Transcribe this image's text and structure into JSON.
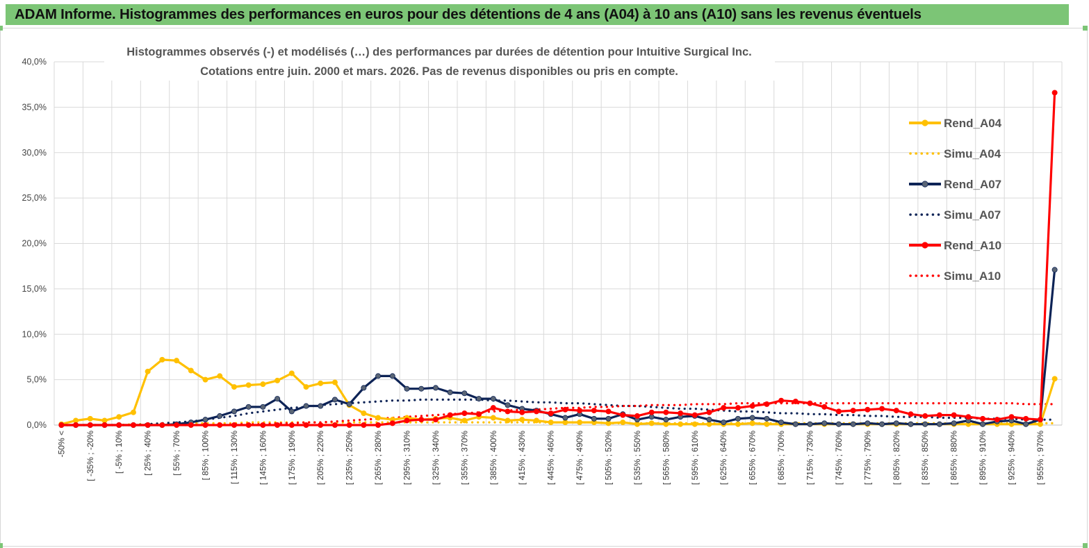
{
  "header": {
    "title": "ADAM Informe. Histogrammes des performances en euros pour des détentions de 4 ans (A04) à 10 ans (A10) sans les revenus éventuels"
  },
  "colors": {
    "banner": "#7cc576",
    "a04": "#ffc000",
    "a07": "#0d2356",
    "a10": "#ff0000",
    "marker_a07": "#5a6575"
  },
  "chart_data": {
    "type": "line",
    "title_line1": "Histogrammes observés (-) et modélisés (…) des performances par durées de détention pour Intuitive Surgical Inc.",
    "title_line2": "Cotations entre juin. 2000 et mars. 2026.  Pas de revenus disponibles ou pris en compte.",
    "xlabel": "",
    "ylabel": "",
    "ylim": [
      0,
      40
    ],
    "yticks": [
      "0,0%",
      "5,0%",
      "10,0%",
      "15,0%",
      "20,0%",
      "25,0%",
      "30,0%",
      "35,0%",
      "40,0%"
    ],
    "x_tick_labels": [
      "-50% <",
      "[ -35% ; -20%",
      "[ -5% ; 10%",
      "[ 25% ; 40%",
      "[ 55% ; 70%",
      "[ 85% ; 100%",
      "[ 115% ; 130%",
      "[ 145% ; 160%",
      "[ 175% ; 190%",
      "[ 205% ; 220%",
      "[ 235% ; 250%",
      "[ 265% ; 280%",
      "[ 295% ; 310%",
      "[ 325% ; 340%",
      "[ 355% ; 370%",
      "[ 385% ; 400%",
      "[ 415% ; 430%",
      "[ 445% ; 460%",
      "[ 475% ; 490%",
      "[ 505% ; 520%",
      "[ 535% ; 550%",
      "[ 565% ; 580%",
      "[ 595% ; 610%",
      "[ 625% ; 640%",
      "[ 655% ; 670%",
      "[ 685% ; 700%",
      "[ 715% ; 730%",
      "[ 745% ; 760%",
      "[ 775% ; 790%",
      "[ 805% ; 820%",
      "[ 835% ; 850%",
      "[ 865% ; 880%",
      "[ 895% ; 910%",
      "[ 925% ; 940%",
      "[ 955% ; 970%"
    ],
    "n_points": 70,
    "grid": true,
    "legend_position": "right",
    "series": [
      {
        "name": "Rend_A04",
        "style": "solid",
        "color": "#ffc000",
        "values": [
          0.1,
          0.5,
          0.7,
          0.5,
          0.9,
          1.4,
          5.9,
          7.2,
          7.1,
          6.0,
          5.0,
          5.4,
          4.2,
          4.4,
          4.5,
          4.9,
          5.7,
          4.2,
          4.6,
          4.7,
          2.2,
          1.3,
          0.8,
          0.6,
          0.8,
          0.6,
          0.7,
          0.8,
          0.5,
          0.9,
          0.8,
          0.5,
          0.6,
          0.5,
          0.3,
          0.3,
          0.3,
          0.3,
          0.2,
          0.3,
          0.1,
          0.2,
          0.1,
          0.1,
          0.1,
          0.1,
          0.1,
          0.1,
          0.2,
          0.1,
          0.1,
          0.1,
          0.1,
          0.1,
          0.1,
          0.1,
          0.1,
          0.1,
          0.1,
          0.1,
          0.1,
          0.1,
          0.1,
          0.1,
          0.1,
          0.1,
          0.1,
          0.1,
          0.1,
          5.1
        ]
      },
      {
        "name": "Simu_A04",
        "style": "dotted",
        "color": "#ffc000",
        "values": [
          0.0,
          0.0,
          0.0,
          0.0,
          0.0,
          0.1,
          0.1,
          0.2,
          0.2,
          0.2,
          0.2,
          0.2,
          0.2,
          0.3,
          0.3,
          0.3,
          0.3,
          0.3,
          0.3,
          0.3,
          0.3,
          0.3,
          0.3,
          0.3,
          0.3,
          0.3,
          0.3,
          0.3,
          0.3,
          0.3,
          0.3,
          0.3,
          0.3,
          0.3,
          0.3,
          0.3,
          0.3,
          0.3,
          0.2,
          0.2,
          0.2,
          0.2,
          0.2,
          0.2,
          0.2,
          0.2,
          0.2,
          0.2,
          0.2,
          0.2,
          0.2,
          0.2,
          0.2,
          0.2,
          0.2,
          0.2,
          0.2,
          0.2,
          0.2,
          0.2,
          0.2,
          0.2,
          0.2,
          0.2,
          0.2,
          0.2,
          0.2,
          0.2,
          0.2,
          0.2
        ]
      },
      {
        "name": "Rend_A07",
        "style": "solid",
        "color": "#0d2356",
        "values": [
          0.0,
          0.0,
          0.0,
          0.0,
          0.0,
          0.0,
          0.0,
          0.0,
          0.1,
          0.3,
          0.6,
          1.0,
          1.5,
          2.0,
          2.0,
          2.9,
          1.5,
          2.1,
          2.1,
          2.8,
          2.3,
          4.1,
          5.4,
          5.4,
          4.0,
          4.0,
          4.1,
          3.6,
          3.5,
          2.9,
          2.9,
          2.2,
          1.8,
          1.6,
          1.2,
          0.8,
          1.2,
          0.7,
          0.7,
          1.2,
          0.6,
          0.9,
          0.6,
          0.9,
          1.0,
          0.6,
          0.3,
          0.7,
          0.8,
          0.7,
          0.3,
          0.1,
          0.1,
          0.2,
          0.1,
          0.1,
          0.2,
          0.1,
          0.2,
          0.1,
          0.1,
          0.1,
          0.2,
          0.5,
          0.1,
          0.4,
          0.5,
          0.1,
          0.6,
          17.1
        ]
      },
      {
        "name": "Simu_A07",
        "style": "dotted",
        "color": "#0d2356",
        "values": [
          0.0,
          0.0,
          0.0,
          0.0,
          0.0,
          0.0,
          0.1,
          0.2,
          0.3,
          0.4,
          0.6,
          0.8,
          1.0,
          1.3,
          1.5,
          1.7,
          1.9,
          2.0,
          2.2,
          2.3,
          2.4,
          2.5,
          2.6,
          2.7,
          2.7,
          2.8,
          2.8,
          2.8,
          2.8,
          2.8,
          2.7,
          2.7,
          2.6,
          2.5,
          2.5,
          2.4,
          2.4,
          2.3,
          2.2,
          2.1,
          2.1,
          2.0,
          1.9,
          1.8,
          1.8,
          1.7,
          1.6,
          1.5,
          1.5,
          1.4,
          1.3,
          1.3,
          1.2,
          1.2,
          1.1,
          1.1,
          1.0,
          1.0,
          0.9,
          0.9,
          0.9,
          0.8,
          0.8,
          0.8,
          0.7,
          0.7,
          0.7,
          0.6,
          0.6,
          0.6
        ]
      },
      {
        "name": "Rend_A10",
        "style": "solid",
        "color": "#ff0000",
        "values": [
          0.0,
          0.0,
          0.0,
          0.0,
          0.0,
          0.0,
          0.0,
          0.0,
          0.0,
          0.0,
          0.0,
          0.0,
          0.0,
          0.0,
          0.0,
          0.0,
          0.0,
          0.0,
          0.0,
          0.0,
          0.0,
          0.0,
          0.0,
          0.2,
          0.5,
          0.6,
          0.6,
          1.1,
          1.3,
          1.2,
          1.9,
          1.5,
          1.4,
          1.5,
          1.3,
          1.7,
          1.6,
          1.6,
          1.5,
          1.1,
          1.0,
          1.4,
          1.4,
          1.3,
          1.1,
          1.4,
          1.9,
          1.9,
          2.1,
          2.3,
          2.7,
          2.6,
          2.4,
          2.0,
          1.5,
          1.6,
          1.7,
          1.8,
          1.6,
          1.2,
          1.0,
          1.1,
          1.1,
          0.9,
          0.7,
          0.6,
          0.9,
          0.7,
          0.6,
          36.6
        ]
      },
      {
        "name": "Simu_A10",
        "style": "dotted",
        "color": "#ff0000",
        "values": [
          0.0,
          0.0,
          0.0,
          0.0,
          0.0,
          0.0,
          0.0,
          0.0,
          0.0,
          0.0,
          0.0,
          0.0,
          0.1,
          0.1,
          0.1,
          0.2,
          0.2,
          0.3,
          0.3,
          0.4,
          0.5,
          0.6,
          0.7,
          0.8,
          0.9,
          1.0,
          1.1,
          1.2,
          1.3,
          1.4,
          1.5,
          1.6,
          1.7,
          1.7,
          1.8,
          1.9,
          1.9,
          2.0,
          2.0,
          2.1,
          2.1,
          2.2,
          2.2,
          2.2,
          2.3,
          2.3,
          2.3,
          2.4,
          2.4,
          2.4,
          2.4,
          2.4,
          2.4,
          2.4,
          2.4,
          2.4,
          2.4,
          2.4,
          2.4,
          2.4,
          2.4,
          2.4,
          2.4,
          2.4,
          2.4,
          2.4,
          2.4,
          2.3,
          2.3,
          2.3
        ]
      }
    ]
  }
}
